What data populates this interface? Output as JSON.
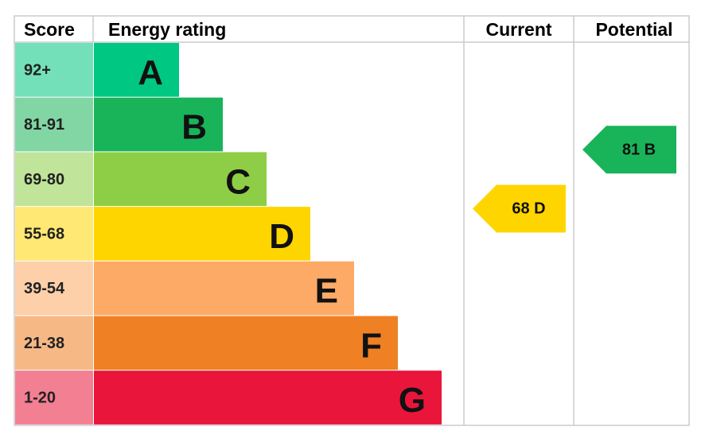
{
  "header": {
    "score": "Score",
    "rating": "Energy rating",
    "current": "Current",
    "potential": "Potential"
  },
  "bands": [
    {
      "score": "92+",
      "letter": "A",
      "color": "#00c781"
    },
    {
      "score": "81-91",
      "letter": "B",
      "color": "#19b459"
    },
    {
      "score": "69-80",
      "letter": "C",
      "color": "#8dce46"
    },
    {
      "score": "55-68",
      "letter": "D",
      "color": "#ffd500"
    },
    {
      "score": "39-54",
      "letter": "E",
      "color": "#fcaa65"
    },
    {
      "score": "21-38",
      "letter": "F",
      "color": "#ef8023"
    },
    {
      "score": "1-20",
      "letter": "G",
      "color": "#e9153b"
    }
  ],
  "current": {
    "value": 68,
    "label": "68 D",
    "color": "#ffd500"
  },
  "potential": {
    "value": 81,
    "label": "81 B",
    "color": "#19b459"
  }
}
